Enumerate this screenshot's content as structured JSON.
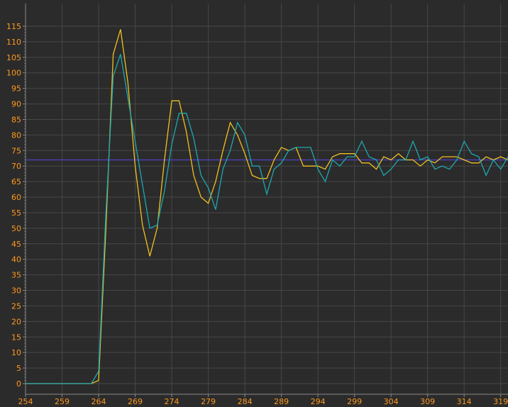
{
  "chart_data": {
    "type": "line",
    "title": "",
    "xlabel": "",
    "ylabel": "",
    "xlim": [
      254,
      320
    ],
    "ylim": [
      0,
      115
    ],
    "x_ticks": [
      254,
      259,
      264,
      269,
      274,
      279,
      284,
      289,
      294,
      299,
      304,
      309,
      314,
      319
    ],
    "y_ticks": [
      0,
      5,
      10,
      15,
      20,
      25,
      30,
      35,
      40,
      45,
      50,
      55,
      60,
      65,
      70,
      75,
      80,
      85,
      90,
      95,
      100,
      105,
      110,
      115
    ],
    "grid": true,
    "legend": "none",
    "reference_line": {
      "y": 72,
      "color": "#4b3fb0"
    },
    "series": [
      {
        "color": "#f0c020",
        "x": [
          254,
          255,
          256,
          257,
          258,
          259,
          260,
          261,
          262,
          263,
          264,
          265,
          266,
          267,
          268,
          269,
          270,
          271,
          272,
          273,
          274,
          275,
          276,
          277,
          278,
          279,
          280,
          281,
          282,
          283,
          284,
          285,
          286,
          287,
          288,
          289,
          290,
          291,
          292,
          293,
          294,
          295,
          296,
          297,
          298,
          299,
          300,
          301,
          302,
          303,
          304,
          305,
          306,
          307,
          308,
          309,
          310,
          311,
          312,
          313,
          314,
          315,
          316,
          317,
          318,
          319,
          320
        ],
        "y": [
          0,
          0,
          0,
          0,
          0,
          0,
          0,
          0,
          0,
          0,
          1,
          50,
          106,
          114,
          97,
          70,
          51,
          41,
          50,
          72,
          91,
          91,
          81,
          67,
          60,
          58,
          65,
          75,
          84,
          80,
          74,
          67,
          66,
          66,
          72,
          76,
          75,
          76,
          70,
          70,
          70,
          69,
          73,
          74,
          74,
          74,
          71,
          71,
          69,
          73,
          72,
          74,
          72,
          72,
          70,
          72,
          71,
          73,
          73,
          73,
          72,
          71,
          71,
          73,
          72,
          73,
          72
        ]
      },
      {
        "color": "#1ea7b0",
        "x": [
          254,
          255,
          256,
          257,
          258,
          259,
          260,
          261,
          262,
          263,
          264,
          265,
          266,
          267,
          268,
          269,
          270,
          271,
          272,
          273,
          274,
          275,
          276,
          277,
          278,
          279,
          280,
          281,
          282,
          283,
          284,
          285,
          286,
          287,
          288,
          289,
          290,
          291,
          292,
          293,
          294,
          295,
          296,
          297,
          298,
          299,
          300,
          301,
          302,
          303,
          304,
          305,
          306,
          307,
          308,
          309,
          310,
          311,
          312,
          313,
          314,
          315,
          316,
          317,
          318,
          319,
          320
        ],
        "y": [
          0,
          0,
          0,
          0,
          0,
          0,
          0,
          0,
          0,
          0,
          4,
          55,
          99,
          106,
          92,
          78,
          64,
          50,
          51,
          62,
          77,
          87,
          87,
          79,
          67,
          63,
          56,
          69,
          75,
          84,
          80,
          70,
          70,
          61,
          69,
          71,
          75,
          76,
          76,
          76,
          69,
          65,
          72,
          70,
          73,
          73,
          78,
          73,
          72,
          67,
          69,
          72,
          72,
          78,
          72,
          73,
          69,
          70,
          69,
          72,
          78,
          74,
          73,
          67,
          72,
          69,
          73
        ]
      }
    ]
  }
}
